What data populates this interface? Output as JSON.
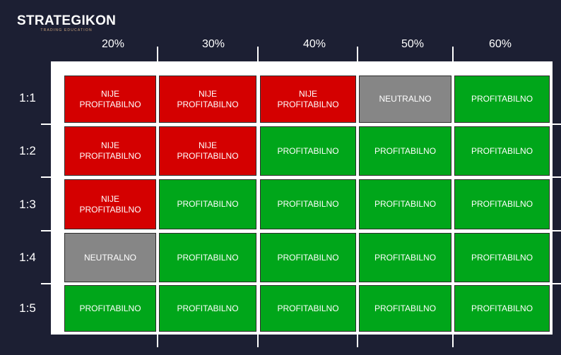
{
  "logo": {
    "name": "STRATEGIKON",
    "tagline": "TRADING EDUCATION"
  },
  "columns": [
    "20%",
    "30%",
    "40%",
    "50%",
    "60%"
  ],
  "rows": [
    "1:1",
    "1:2",
    "1:3",
    "1:4",
    "1:5"
  ],
  "labels": {
    "bad": "NIJE\nPROFITABILNO",
    "neutral": "NEUTRALNO",
    "good": "PROFITABILNO"
  },
  "colors": {
    "bad": "#d40000",
    "neutral": "#868686",
    "good": "#00a61a",
    "background": "#1c1f33"
  },
  "grid": [
    [
      "bad",
      "bad",
      "bad",
      "neutral",
      "good"
    ],
    [
      "bad",
      "bad",
      "good",
      "good",
      "good"
    ],
    [
      "bad",
      "good",
      "good",
      "good",
      "good"
    ],
    [
      "neutral",
      "good",
      "good",
      "good",
      "good"
    ],
    [
      "good",
      "good",
      "good",
      "good",
      "good"
    ]
  ],
  "cells": {
    "r0": [
      "NIJE\nPROFITABILNO",
      "NIJE\nPROFITABILNO",
      "NIJE\nPROFITABILNO",
      "NEUTRALNO",
      "PROFITABILNO"
    ],
    "r1": [
      "NIJE\nPROFITABILNO",
      "NIJE\nPROFITABILNO",
      "PROFITABILNO",
      "PROFITABILNO",
      "PROFITABILNO"
    ],
    "r2": [
      "NIJE\nPROFITABILNO",
      "PROFITABILNO",
      "PROFITABILNO",
      "PROFITABILNO",
      "PROFITABILNO"
    ],
    "r3": [
      "NEUTRALNO",
      "PROFITABILNO",
      "PROFITABILNO",
      "PROFITABILNO",
      "PROFITABILNO"
    ],
    "r4": [
      "PROFITABILNO",
      "PROFITABILNO",
      "PROFITABILNO",
      "PROFITABILNO",
      "PROFITABILNO"
    ]
  }
}
